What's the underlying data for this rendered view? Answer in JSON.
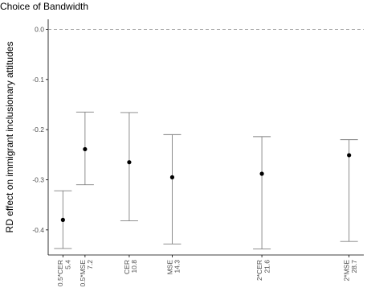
{
  "chart_data": {
    "type": "scatter",
    "title": "Choice of Bandwidth",
    "xlabel": "",
    "ylabel": "RD effect on immigrant inclusionary attitudes",
    "x_scale": "continuous",
    "x_range": [
      4.2,
      29.9
    ],
    "ylim": [
      -0.45,
      0.02
    ],
    "y_ticks": [
      0.0,
      -0.1,
      -0.2,
      -0.3,
      -0.4
    ],
    "y_tick_labels": [
      "0.0",
      "-0.1",
      "-0.2",
      "-0.3",
      "-0.4"
    ],
    "reference_line": {
      "y": 0.0,
      "style": "dashed"
    },
    "grid": false,
    "points": [
      {
        "label": "0.5*CER",
        "bandwidth": 5.4,
        "bandwidth_label": "5.4",
        "estimate": -0.38,
        "lower": -0.437,
        "upper": -0.322
      },
      {
        "label": "0.5*MSE",
        "bandwidth": 7.2,
        "bandwidth_label": "7.2",
        "estimate": -0.239,
        "lower": -0.31,
        "upper": -0.165
      },
      {
        "label": "CER",
        "bandwidth": 10.8,
        "bandwidth_label": "10.8",
        "estimate": -0.265,
        "lower": -0.382,
        "upper": -0.166
      },
      {
        "label": "MSE",
        "bandwidth": 14.3,
        "bandwidth_label": "14.3",
        "estimate": -0.295,
        "lower": -0.428,
        "upper": -0.21
      },
      {
        "label": "2*CER",
        "bandwidth": 21.6,
        "bandwidth_label": "21.6",
        "estimate": -0.288,
        "lower": -0.438,
        "upper": -0.214
      },
      {
        "label": "2*MSE",
        "bandwidth": 28.7,
        "bandwidth_label": "28.7",
        "estimate": -0.251,
        "lower": -0.423,
        "upper": -0.22
      }
    ],
    "colors": {
      "point": "#000000",
      "errorbar": "#808080",
      "reference_line": "#808080",
      "axis": "#000000",
      "tick_label": "#4d4d4d"
    }
  }
}
